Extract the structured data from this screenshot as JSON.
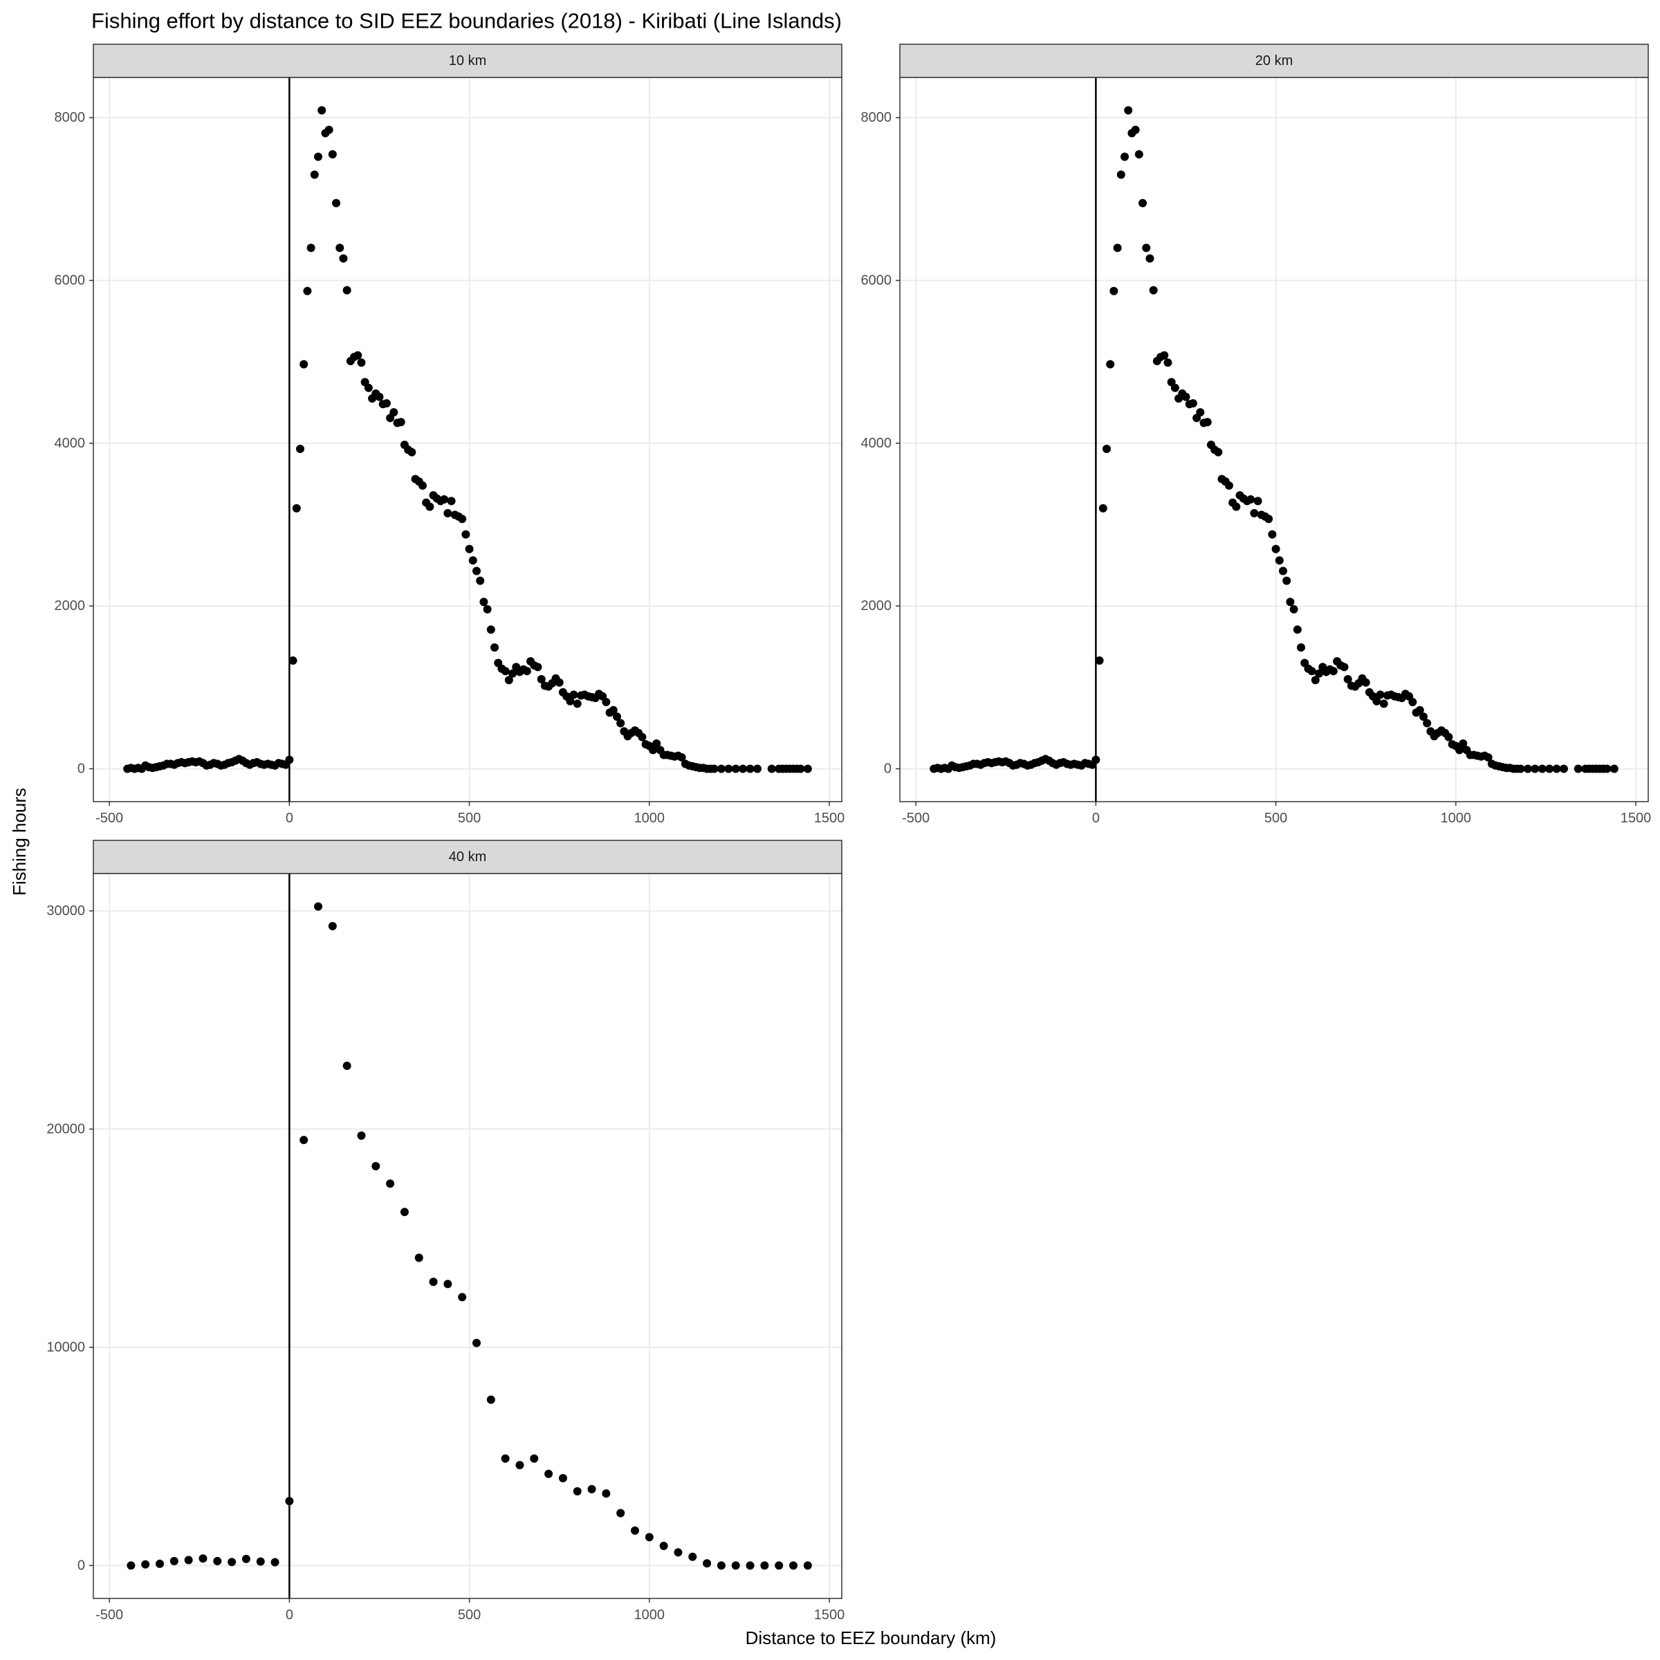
{
  "title": "Fishing effort by distance to SID EEZ boundaries (2018) - Kiribati (Line Islands)",
  "x_label": "Distance to EEZ boundary (km)",
  "y_label": "Fishing hours",
  "chart_data": [
    {
      "type": "scatter",
      "title": "10 km",
      "color": "#000000",
      "grid": true,
      "vline": 0,
      "xlim": [
        -544.5,
        1534.5
      ],
      "ylim": [
        -404,
        8494
      ],
      "xticks": [
        -500,
        0,
        500,
        1000,
        1500
      ],
      "yticks": [
        0,
        2000,
        4000,
        6000,
        8000
      ],
      "x": [
        -450,
        -440,
        -430,
        -420,
        -410,
        -400,
        -390,
        -380,
        -370,
        -360,
        -350,
        -340,
        -330,
        -320,
        -310,
        -300,
        -290,
        -280,
        -270,
        -260,
        -250,
        -240,
        -230,
        -220,
        -210,
        -200,
        -190,
        -180,
        -170,
        -160,
        -150,
        -140,
        -130,
        -120,
        -110,
        -100,
        -90,
        -80,
        -70,
        -60,
        -50,
        -40,
        -30,
        -20,
        -10,
        0,
        10,
        20,
        30,
        40,
        50,
        60,
        70,
        80,
        90,
        100,
        110,
        120,
        130,
        140,
        150,
        160,
        170,
        180,
        190,
        200,
        210,
        220,
        230,
        240,
        250,
        260,
        270,
        280,
        290,
        300,
        310,
        320,
        330,
        340,
        350,
        360,
        370,
        380,
        390,
        400,
        410,
        420,
        430,
        440,
        450,
        460,
        470,
        480,
        490,
        500,
        510,
        520,
        530,
        540,
        550,
        560,
        570,
        580,
        590,
        600,
        610,
        620,
        630,
        640,
        650,
        660,
        670,
        680,
        690,
        700,
        710,
        720,
        730,
        740,
        750,
        760,
        770,
        780,
        790,
        800,
        810,
        820,
        830,
        840,
        850,
        860,
        870,
        880,
        890,
        900,
        910,
        920,
        930,
        940,
        950,
        960,
        970,
        980,
        990,
        1000,
        1010,
        1020,
        1030,
        1040,
        1050,
        1060,
        1070,
        1080,
        1090,
        1100,
        1110,
        1120,
        1130,
        1140,
        1150,
        1160,
        1170,
        1180,
        1200,
        1220,
        1240,
        1260,
        1280,
        1300,
        1340,
        1360,
        1370,
        1380,
        1390,
        1400,
        1410,
        1420,
        1440
      ],
      "values": [
        0,
        10,
        0,
        10,
        0,
        40,
        20,
        10,
        20,
        30,
        40,
        60,
        60,
        50,
        70,
        80,
        70,
        80,
        90,
        80,
        90,
        70,
        40,
        50,
        70,
        60,
        40,
        50,
        70,
        80,
        100,
        120,
        100,
        70,
        50,
        70,
        80,
        60,
        50,
        60,
        50,
        40,
        70,
        60,
        50,
        110,
        1330,
        3200,
        3930,
        4970,
        5870,
        6400,
        7300,
        7520,
        8090,
        7810,
        7850,
        7550,
        6950,
        6400,
        6270,
        5880,
        5010,
        5060,
        5080,
        4990,
        4750,
        4680,
        4550,
        4610,
        4570,
        4480,
        4490,
        4310,
        4380,
        4250,
        4260,
        3980,
        3920,
        3890,
        3560,
        3530,
        3480,
        3270,
        3220,
        3360,
        3320,
        3290,
        3310,
        3140,
        3290,
        3120,
        3100,
        3070,
        2880,
        2700,
        2560,
        2430,
        2310,
        2050,
        1960,
        1710,
        1490,
        1300,
        1230,
        1200,
        1090,
        1170,
        1250,
        1190,
        1220,
        1200,
        1320,
        1270,
        1250,
        1100,
        1020,
        1010,
        1050,
        1110,
        1060,
        940,
        890,
        830,
        910,
        800,
        900,
        910,
        890,
        880,
        870,
        920,
        890,
        820,
        690,
        720,
        640,
        560,
        460,
        400,
        440,
        470,
        440,
        390,
        300,
        280,
        230,
        310,
        230,
        170,
        170,
        160,
        150,
        160,
        140,
        60,
        40,
        30,
        20,
        10,
        10,
        0,
        0,
        0,
        0,
        0,
        0,
        0,
        0,
        0,
        0,
        0,
        0,
        0,
        0,
        0,
        0,
        0,
        0
      ]
    },
    {
      "type": "scatter",
      "title": "20 km",
      "color": "#000000",
      "grid": true,
      "vline": 0,
      "xlim": [
        -544.5,
        1534.5
      ],
      "ylim": [
        -404,
        8494
      ],
      "xticks": [
        -500,
        0,
        500,
        1000,
        1500
      ],
      "yticks": [
        0,
        2000,
        4000,
        6000,
        8000
      ],
      "x": [
        -450,
        -440,
        -430,
        -420,
        -410,
        -400,
        -390,
        -380,
        -370,
        -360,
        -350,
        -340,
        -330,
        -320,
        -310,
        -300,
        -290,
        -280,
        -270,
        -260,
        -250,
        -240,
        -230,
        -220,
        -210,
        -200,
        -190,
        -180,
        -170,
        -160,
        -150,
        -140,
        -130,
        -120,
        -110,
        -100,
        -90,
        -80,
        -70,
        -60,
        -50,
        -40,
        -30,
        -20,
        -10,
        0,
        10,
        20,
        30,
        40,
        50,
        60,
        70,
        80,
        90,
        100,
        110,
        120,
        130,
        140,
        150,
        160,
        170,
        180,
        190,
        200,
        210,
        220,
        230,
        240,
        250,
        260,
        270,
        280,
        290,
        300,
        310,
        320,
        330,
        340,
        350,
        360,
        370,
        380,
        390,
        400,
        410,
        420,
        430,
        440,
        450,
        460,
        470,
        480,
        490,
        500,
        510,
        520,
        530,
        540,
        550,
        560,
        570,
        580,
        590,
        600,
        610,
        620,
        630,
        640,
        650,
        660,
        670,
        680,
        690,
        700,
        710,
        720,
        730,
        740,
        750,
        760,
        770,
        780,
        790,
        800,
        810,
        820,
        830,
        840,
        850,
        860,
        870,
        880,
        890,
        900,
        910,
        920,
        930,
        940,
        950,
        960,
        970,
        980,
        990,
        1000,
        1010,
        1020,
        1030,
        1040,
        1050,
        1060,
        1070,
        1080,
        1090,
        1100,
        1110,
        1120,
        1130,
        1140,
        1150,
        1160,
        1170,
        1180,
        1200,
        1220,
        1240,
        1260,
        1280,
        1300,
        1340,
        1360,
        1370,
        1380,
        1390,
        1400,
        1410,
        1420,
        1440
      ],
      "values": [
        0,
        10,
        0,
        10,
        0,
        40,
        20,
        10,
        20,
        30,
        40,
        60,
        60,
        50,
        70,
        80,
        70,
        80,
        90,
        80,
        90,
        70,
        40,
        50,
        70,
        60,
        40,
        50,
        70,
        80,
        100,
        120,
        100,
        70,
        50,
        70,
        80,
        60,
        50,
        60,
        50,
        40,
        70,
        60,
        50,
        110,
        1330,
        3200,
        3930,
        4970,
        5870,
        6400,
        7300,
        7520,
        8090,
        7810,
        7850,
        7550,
        6950,
        6400,
        6270,
        5880,
        5010,
        5060,
        5080,
        4990,
        4750,
        4680,
        4550,
        4610,
        4570,
        4480,
        4490,
        4310,
        4380,
        4250,
        4260,
        3980,
        3920,
        3890,
        3560,
        3530,
        3480,
        3270,
        3220,
        3360,
        3320,
        3290,
        3310,
        3140,
        3290,
        3120,
        3100,
        3070,
        2880,
        2700,
        2560,
        2430,
        2310,
        2050,
        1960,
        1710,
        1490,
        1300,
        1230,
        1200,
        1090,
        1170,
        1250,
        1190,
        1220,
        1200,
        1320,
        1270,
        1250,
        1100,
        1020,
        1010,
        1050,
        1110,
        1060,
        940,
        890,
        830,
        910,
        800,
        900,
        910,
        890,
        880,
        870,
        920,
        890,
        820,
        690,
        720,
        640,
        560,
        460,
        400,
        440,
        470,
        440,
        390,
        300,
        280,
        230,
        310,
        230,
        170,
        170,
        160,
        150,
        160,
        140,
        60,
        40,
        30,
        20,
        10,
        10,
        0,
        0,
        0,
        0,
        0,
        0,
        0,
        0,
        0,
        0,
        0,
        0,
        0,
        0,
        0,
        0,
        0,
        0
      ]
    },
    {
      "type": "scatter",
      "title": "40 km",
      "color": "#000000",
      "grid": true,
      "vline": 0,
      "xlim": [
        -544.5,
        1534.5
      ],
      "ylim": [
        -1510,
        31710
      ],
      "xticks": [
        -500,
        0,
        500,
        1000,
        1500
      ],
      "yticks": [
        0,
        10000,
        20000,
        30000
      ],
      "x": [
        -440,
        -400,
        -360,
        -320,
        -280,
        -240,
        -200,
        -160,
        -120,
        -80,
        -40,
        0,
        40,
        80,
        120,
        160,
        200,
        240,
        280,
        320,
        360,
        400,
        440,
        480,
        520,
        560,
        600,
        640,
        680,
        720,
        760,
        800,
        840,
        880,
        920,
        960,
        1000,
        1040,
        1080,
        1120,
        1160,
        1200,
        1240,
        1280,
        1320,
        1360,
        1400,
        1440
      ],
      "values": [
        0,
        50,
        80,
        200,
        250,
        320,
        200,
        160,
        300,
        180,
        150,
        2950,
        19500,
        30200,
        29300,
        22900,
        19700,
        18300,
        17500,
        16200,
        14100,
        13000,
        12900,
        12300,
        10200,
        7600,
        4900,
        4600,
        4900,
        4200,
        4000,
        3400,
        3500,
        3300,
        2400,
        1600,
        1300,
        900,
        600,
        400,
        100,
        0,
        0,
        0,
        0,
        0,
        0,
        0
      ]
    }
  ]
}
